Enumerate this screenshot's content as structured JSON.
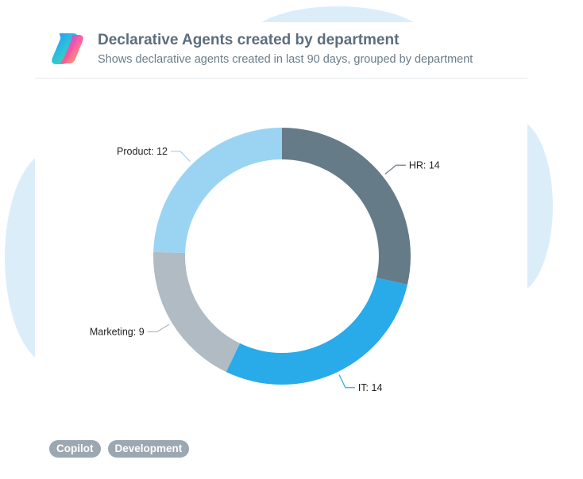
{
  "card": {
    "title": "Declarative Agents created by department",
    "subtitle": "Shows declarative agents created in last 90 days, grouped by department",
    "logo_icon": "copilot-logo-icon"
  },
  "tags": [
    "Copilot",
    "Development"
  ],
  "chart_data": {
    "type": "pie",
    "donut": true,
    "categories": [
      "HR",
      "IT",
      "Marketing",
      "Product"
    ],
    "values": [
      14,
      14,
      9,
      12
    ],
    "colors": [
      "#667b88",
      "#29aae9",
      "#b0bbc3",
      "#9ad4f2"
    ],
    "data_labels": [
      "HR: 14",
      "IT: 14",
      "Marketing: 9",
      "Product: 12"
    ],
    "title": "",
    "legend": "none"
  }
}
